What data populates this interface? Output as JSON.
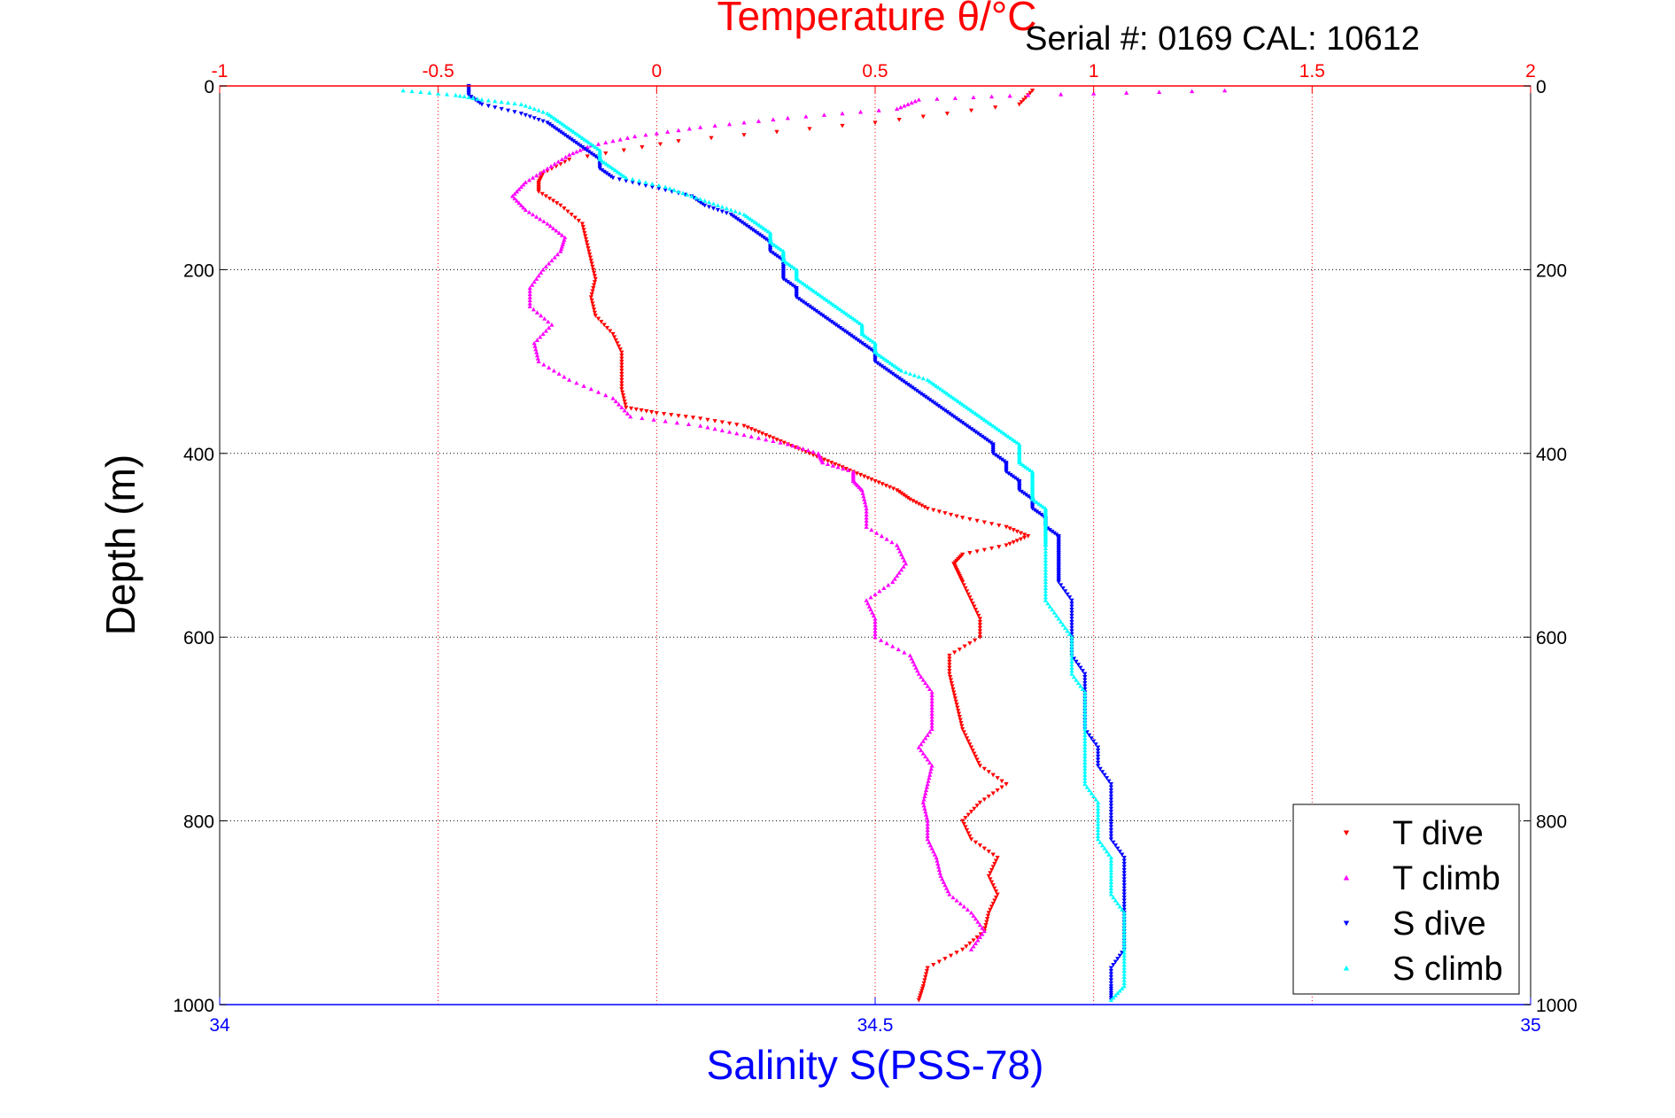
{
  "chart_data": {
    "type": "scatter",
    "title": "Temperature θ/°C",
    "subtitle": "Serial #: 0169 CAL: 10612",
    "xlabel": "Salinity S(PSS-78)",
    "ylabel": "Depth (m)",
    "x_top": {
      "label": "Temperature θ/°C",
      "range": [
        -1,
        2
      ],
      "ticks": [
        "-1",
        "-0.5",
        "0",
        "0.5",
        "1",
        "1.5",
        "2"
      ],
      "color": "#ff0000"
    },
    "x_bottom": {
      "label": "Salinity S(PSS-78)",
      "range": [
        34,
        35
      ],
      "ticks": [
        "34",
        "34.5",
        "35"
      ],
      "color": "#0000ff"
    },
    "y": {
      "range": [
        0,
        1000
      ],
      "inverted": true,
      "ticks": [
        "0",
        "200",
        "400",
        "600",
        "800",
        "1000"
      ]
    },
    "grid": true,
    "legend_position": "bottom-right",
    "series": [
      {
        "name": "T dive",
        "axis": "temperature",
        "color": "#ff0000",
        "marker": "triangle-down",
        "depth": [
          5,
          20,
          40,
          60,
          80,
          95,
          105,
          115,
          130,
          150,
          170,
          190,
          210,
          230,
          250,
          270,
          290,
          310,
          330,
          350,
          356,
          362,
          370,
          380,
          390,
          400,
          410,
          420,
          430,
          440,
          450,
          460,
          470,
          480,
          490,
          500,
          510,
          520,
          530,
          540,
          560,
          580,
          600,
          620,
          640,
          660,
          680,
          700,
          720,
          740,
          760,
          780,
          800,
          820,
          840,
          860,
          880,
          900,
          920,
          940,
          960,
          980,
          995
        ],
        "values": [
          0.86,
          0.83,
          0.5,
          0.05,
          -0.2,
          -0.26,
          -0.27,
          -0.27,
          -0.22,
          -0.17,
          -0.16,
          -0.15,
          -0.14,
          -0.15,
          -0.14,
          -0.1,
          -0.08,
          -0.08,
          -0.08,
          -0.07,
          0.0,
          0.1,
          0.2,
          0.25,
          0.3,
          0.35,
          0.4,
          0.45,
          0.5,
          0.55,
          0.58,
          0.62,
          0.7,
          0.8,
          0.85,
          0.8,
          0.7,
          0.68,
          0.69,
          0.7,
          0.72,
          0.74,
          0.74,
          0.67,
          0.67,
          0.68,
          0.69,
          0.7,
          0.72,
          0.74,
          0.8,
          0.74,
          0.7,
          0.72,
          0.78,
          0.76,
          0.78,
          0.76,
          0.75,
          0.7,
          0.62,
          0.61,
          0.6
        ]
      },
      {
        "name": "T climb",
        "axis": "temperature",
        "color": "#ff00ff",
        "marker": "triangle-up",
        "depth": [
          5,
          10,
          15,
          25,
          35,
          45,
          55,
          65,
          75,
          90,
          105,
          120,
          135,
          150,
          165,
          180,
          200,
          220,
          240,
          260,
          280,
          300,
          320,
          340,
          360,
          370,
          380,
          390,
          400,
          410,
          420,
          430,
          440,
          460,
          480,
          500,
          520,
          540,
          560,
          580,
          600,
          620,
          640,
          660,
          680,
          700,
          720,
          740,
          760,
          780,
          800,
          820,
          840,
          860,
          880,
          900,
          920,
          940
        ],
        "values": [
          1.3,
          0.85,
          0.6,
          0.55,
          0.3,
          0.1,
          -0.05,
          -0.15,
          -0.2,
          -0.25,
          -0.3,
          -0.33,
          -0.3,
          -0.25,
          -0.21,
          -0.22,
          -0.26,
          -0.29,
          -0.29,
          -0.24,
          -0.28,
          -0.27,
          -0.2,
          -0.1,
          -0.06,
          0.1,
          0.2,
          0.3,
          0.37,
          0.38,
          0.45,
          0.45,
          0.47,
          0.48,
          0.48,
          0.55,
          0.57,
          0.54,
          0.48,
          0.5,
          0.5,
          0.58,
          0.6,
          0.63,
          0.63,
          0.63,
          0.6,
          0.63,
          0.62,
          0.61,
          0.62,
          0.62,
          0.64,
          0.65,
          0.67,
          0.72,
          0.75,
          0.72
        ]
      },
      {
        "name": "S dive",
        "axis": "salinity",
        "color": "#0000ff",
        "marker": "triangle-down",
        "depth": [
          0,
          10,
          20,
          30,
          40,
          50,
          60,
          70,
          80,
          90,
          100,
          110,
          120,
          130,
          140,
          150,
          160,
          170,
          180,
          190,
          200,
          210,
          220,
          230,
          240,
          250,
          260,
          270,
          280,
          290,
          300,
          310,
          320,
          330,
          340,
          350,
          360,
          370,
          380,
          390,
          400,
          410,
          420,
          430,
          440,
          450,
          460,
          470,
          480,
          490,
          500,
          510,
          520,
          530,
          540,
          560,
          580,
          600,
          620,
          640,
          660,
          680,
          700,
          720,
          740,
          760,
          780,
          800,
          820,
          840,
          860,
          880,
          900,
          920,
          940,
          960,
          980,
          995
        ],
        "values": [
          34.19,
          34.19,
          34.2,
          34.23,
          34.25,
          34.26,
          34.27,
          34.28,
          34.29,
          34.29,
          34.3,
          34.33,
          34.36,
          34.37,
          34.39,
          34.4,
          34.41,
          34.42,
          34.42,
          34.43,
          34.43,
          34.43,
          34.44,
          34.44,
          34.45,
          34.46,
          34.47,
          34.48,
          34.49,
          34.5,
          34.5,
          34.51,
          34.52,
          34.53,
          34.54,
          34.55,
          34.56,
          34.57,
          34.58,
          34.59,
          34.59,
          34.6,
          34.6,
          34.61,
          34.61,
          34.62,
          34.62,
          34.63,
          34.63,
          34.64,
          34.64,
          34.64,
          34.64,
          34.64,
          34.64,
          34.65,
          34.65,
          34.65,
          34.65,
          34.66,
          34.66,
          34.66,
          34.66,
          34.67,
          34.67,
          34.68,
          34.68,
          34.68,
          34.68,
          34.69,
          34.69,
          34.69,
          34.69,
          34.69,
          34.69,
          34.68,
          34.68,
          34.68
        ]
      },
      {
        "name": "S climb",
        "axis": "salinity",
        "color": "#00ffff",
        "marker": "triangle-up",
        "depth": [
          5,
          10,
          15,
          20,
          30,
          40,
          50,
          60,
          70,
          80,
          90,
          100,
          110,
          120,
          130,
          140,
          150,
          160,
          170,
          180,
          190,
          200,
          210,
          220,
          230,
          240,
          250,
          260,
          270,
          280,
          290,
          300,
          310,
          320,
          330,
          340,
          350,
          360,
          370,
          380,
          390,
          400,
          410,
          420,
          430,
          440,
          450,
          460,
          470,
          480,
          490,
          500,
          520,
          540,
          560,
          580,
          600,
          620,
          640,
          660,
          680,
          700,
          720,
          740,
          760,
          780,
          800,
          820,
          840,
          860,
          880,
          900,
          920,
          940,
          960,
          980,
          995
        ],
        "values": [
          34.14,
          34.18,
          34.2,
          34.23,
          34.25,
          34.26,
          34.27,
          34.28,
          34.29,
          34.29,
          34.3,
          34.31,
          34.34,
          34.36,
          34.38,
          34.4,
          34.41,
          34.42,
          34.42,
          34.43,
          34.43,
          34.44,
          34.44,
          34.45,
          34.46,
          34.47,
          34.48,
          34.49,
          34.49,
          34.5,
          34.5,
          34.51,
          34.52,
          34.54,
          34.55,
          34.56,
          34.57,
          34.58,
          34.59,
          34.6,
          34.61,
          34.61,
          34.61,
          34.62,
          34.62,
          34.62,
          34.62,
          34.63,
          34.63,
          34.63,
          34.63,
          34.63,
          34.63,
          34.63,
          34.63,
          34.64,
          34.65,
          34.65,
          34.65,
          34.66,
          34.66,
          34.66,
          34.66,
          34.66,
          34.66,
          34.67,
          34.67,
          34.67,
          34.68,
          34.68,
          34.68,
          34.69,
          34.69,
          34.69,
          34.69,
          34.69,
          34.68
        ]
      }
    ]
  }
}
